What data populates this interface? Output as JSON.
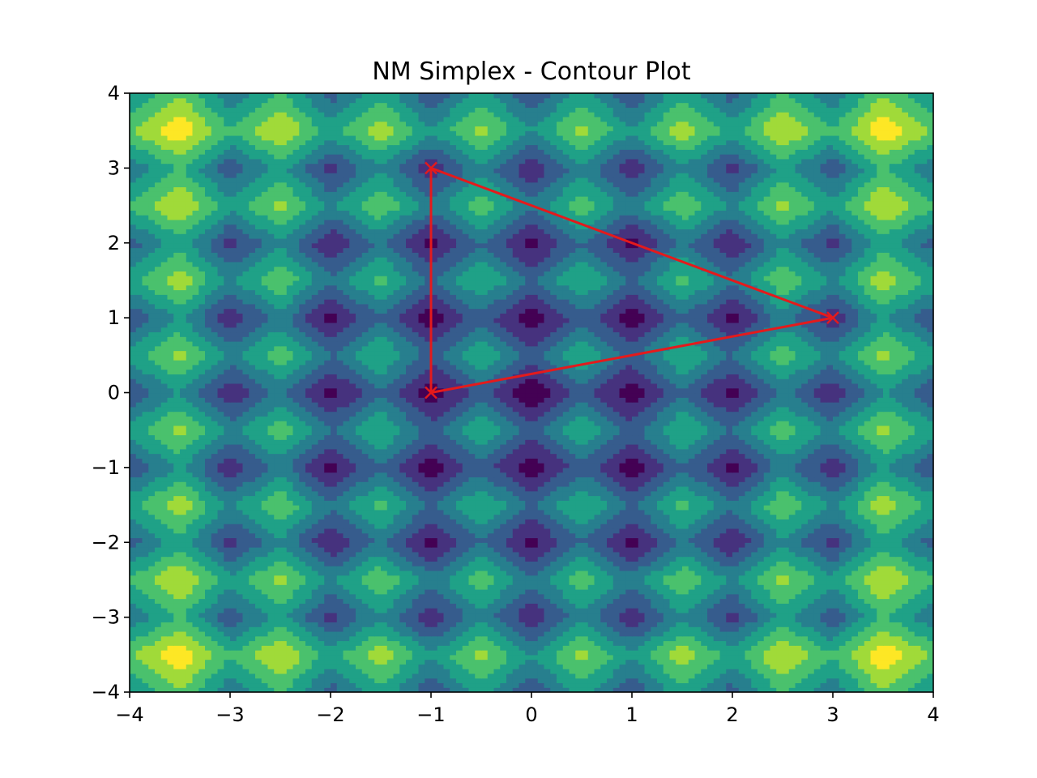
{
  "chart_data": {
    "type": "contour",
    "title": "NM Simplex - Contour Plot",
    "xlabel": "",
    "ylabel": "",
    "xlim": [
      -4,
      4
    ],
    "ylim": [
      -4,
      4
    ],
    "x_ticks": [
      -4,
      -3,
      -2,
      -1,
      0,
      1,
      2,
      3,
      4
    ],
    "y_ticks": [
      -4,
      -3,
      -2,
      -1,
      0,
      1,
      2,
      3,
      4
    ],
    "x_tick_labels": [
      "−4",
      "−3",
      "−2",
      "−1",
      "0",
      "1",
      "2",
      "3",
      "4"
    ],
    "y_tick_labels": [
      "−4",
      "−3",
      "−2",
      "−1",
      "0",
      "1",
      "2",
      "3",
      "4"
    ],
    "grid": false,
    "colormap": "viridis",
    "contour_levels": 8,
    "surface": "rastrigin",
    "simplex": {
      "color": "#e41a1c",
      "marker": "x",
      "points": [
        {
          "x": -1,
          "y": 3
        },
        {
          "x": 3,
          "y": 1
        },
        {
          "x": -1,
          "y": 0
        }
      ]
    }
  }
}
